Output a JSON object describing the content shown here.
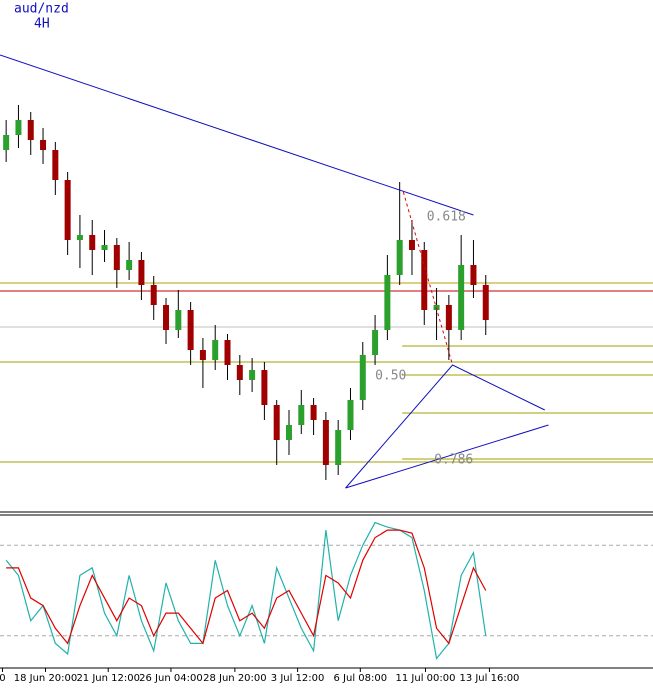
{
  "chart_data": [
    {
      "type": "candlestick",
      "title": "aud/nzd",
      "subtitle": "4H",
      "xlim": [
        -0.5,
        52.6
      ],
      "ylim": [
        1.25,
        1.301
      ],
      "xticks": [
        {
          "value": -0.3,
          "label": "0"
        },
        {
          "value": 3.2,
          "label": "18 Jun 20:00"
        },
        {
          "value": 8.3,
          "label": "21 Jun 12:00"
        },
        {
          "value": 13.4,
          "label": "26 Jun 04:00"
        },
        {
          "value": 18.6,
          "label": "28 Jun 20:00"
        },
        {
          "value": 23.7,
          "label": "3 Jul 12:00"
        },
        {
          "value": 28.8,
          "label": "6 Jul 08:00"
        },
        {
          "value": 34.1,
          "label": "11 Jul 00:00"
        },
        {
          "value": 39.3,
          "label": "13 Jul 16:00"
        }
      ],
      "up_color": "#2ca02c",
      "down_color": "#a00000",
      "open": [
        1.286,
        1.2875,
        1.289,
        1.287,
        1.286,
        1.283,
        1.277,
        1.2775,
        1.276,
        1.2765,
        1.274,
        1.275,
        1.2725,
        1.2705,
        1.268,
        1.27,
        1.266,
        1.265,
        1.267,
        1.2645,
        1.263,
        1.264,
        1.2605,
        1.257,
        1.2585,
        1.2605,
        1.259,
        1.2545,
        1.258,
        1.261,
        1.2655,
        1.268,
        1.2735,
        1.277,
        1.276,
        1.27,
        1.2705,
        1.268,
        1.2745,
        1.2725
      ],
      "high": [
        1.289,
        1.2905,
        1.2898,
        1.2882,
        1.2868,
        1.2838,
        1.2795,
        1.279,
        1.278,
        1.2772,
        1.2768,
        1.2758,
        1.2734,
        1.2712,
        1.272,
        1.2708,
        1.2672,
        1.2685,
        1.2676,
        1.2655,
        1.2652,
        1.2648,
        1.261,
        1.26,
        1.262,
        1.2612,
        1.2598,
        1.259,
        1.2622,
        1.2668,
        1.2695,
        1.2755,
        1.2828,
        1.279,
        1.2768,
        1.2722,
        1.2715,
        1.2775,
        1.277,
        1.2735
      ],
      "low": [
        1.2848,
        1.2862,
        1.2855,
        1.2846,
        1.2815,
        1.2755,
        1.2742,
        1.2735,
        1.2748,
        1.2722,
        1.273,
        1.271,
        1.269,
        1.2666,
        1.2672,
        1.2645,
        1.2622,
        1.264,
        1.263,
        1.2615,
        1.2618,
        1.259,
        1.2545,
        1.2555,
        1.2576,
        1.2575,
        1.253,
        1.2535,
        1.257,
        1.26,
        1.2645,
        1.267,
        1.2725,
        1.2735,
        1.2685,
        1.267,
        1.265,
        1.267,
        1.2712,
        1.2675
      ],
      "close": [
        1.2875,
        1.289,
        1.287,
        1.286,
        1.283,
        1.277,
        1.2775,
        1.276,
        1.2765,
        1.274,
        1.275,
        1.2725,
        1.2705,
        1.268,
        1.27,
        1.266,
        1.265,
        1.267,
        1.2645,
        1.263,
        1.264,
        1.2605,
        1.257,
        1.2585,
        1.2605,
        1.259,
        1.2545,
        1.258,
        1.261,
        1.2655,
        1.268,
        1.2735,
        1.277,
        1.276,
        1.27,
        1.2705,
        1.268,
        1.2745,
        1.2725,
        1.269
      ],
      "hlines": [
        {
          "value": 1.2727,
          "color": "#b8a000"
        },
        {
          "value": 1.2719,
          "color": "#c00000"
        },
        {
          "value": 1.2683,
          "color": "#c0c0c0"
        },
        {
          "value": 1.2648,
          "color": "#a0a000"
        },
        {
          "value": 1.2548,
          "color": "#a0a000"
        }
      ],
      "fib_start": 32.2,
      "fib_levels": [
        1.2664,
        1.2635,
        1.2597,
        1.2551
      ],
      "fib_color": "#a0a000",
      "fib_labels": [
        {
          "text": "0.618",
          "x": 34.2,
          "y": 1.2793
        },
        {
          "text": "0.50",
          "x": 30.0,
          "y": 1.2634
        },
        {
          "text": "0.786",
          "x": 34.8,
          "y": 1.255
        }
      ],
      "lines": [
        {
          "color": "#1010c0",
          "dash": false,
          "x": [
            -0.5,
            38
          ],
          "y": [
            1.2955,
            1.2795
          ]
        },
        {
          "color": "#1010c0",
          "dash": false,
          "x": [
            27.6,
            36.3,
            43.8
          ],
          "y": [
            1.2522,
            1.2645,
            1.26
          ]
        },
        {
          "color": "#1010c0",
          "dash": false,
          "x": [
            27.6,
            44.1
          ],
          "y": [
            1.2522,
            1.2585
          ]
        },
        {
          "color": "#e00000",
          "dash": true,
          "x": [
            32.3,
            36.3
          ],
          "y": [
            1.2818,
            1.2645
          ]
        }
      ]
    },
    {
      "type": "line",
      "xlim": [
        -0.5,
        52.6
      ],
      "ylim": [
        0,
        100
      ],
      "levels": [
        20,
        80
      ],
      "series": [
        {
          "color": "#20b2aa",
          "values": [
            70,
            60,
            30,
            40,
            15,
            8,
            60,
            65,
            35,
            20,
            60,
            30,
            10,
            55,
            30,
            15,
            15,
            70,
            40,
            20,
            40,
            15,
            65,
            45,
            25,
            10,
            90,
            30,
            60,
            80,
            95,
            92,
            90,
            85,
            50,
            5,
            15,
            60,
            75,
            20
          ]
        },
        {
          "color": "#e00000",
          "values": [
            65,
            65,
            45,
            40,
            25,
            15,
            40,
            60,
            45,
            30,
            45,
            40,
            20,
            35,
            35,
            25,
            15,
            45,
            50,
            30,
            35,
            25,
            45,
            50,
            35,
            20,
            60,
            55,
            45,
            70,
            85,
            90,
            90,
            88,
            65,
            25,
            15,
            40,
            65,
            50
          ]
        }
      ]
    }
  ]
}
